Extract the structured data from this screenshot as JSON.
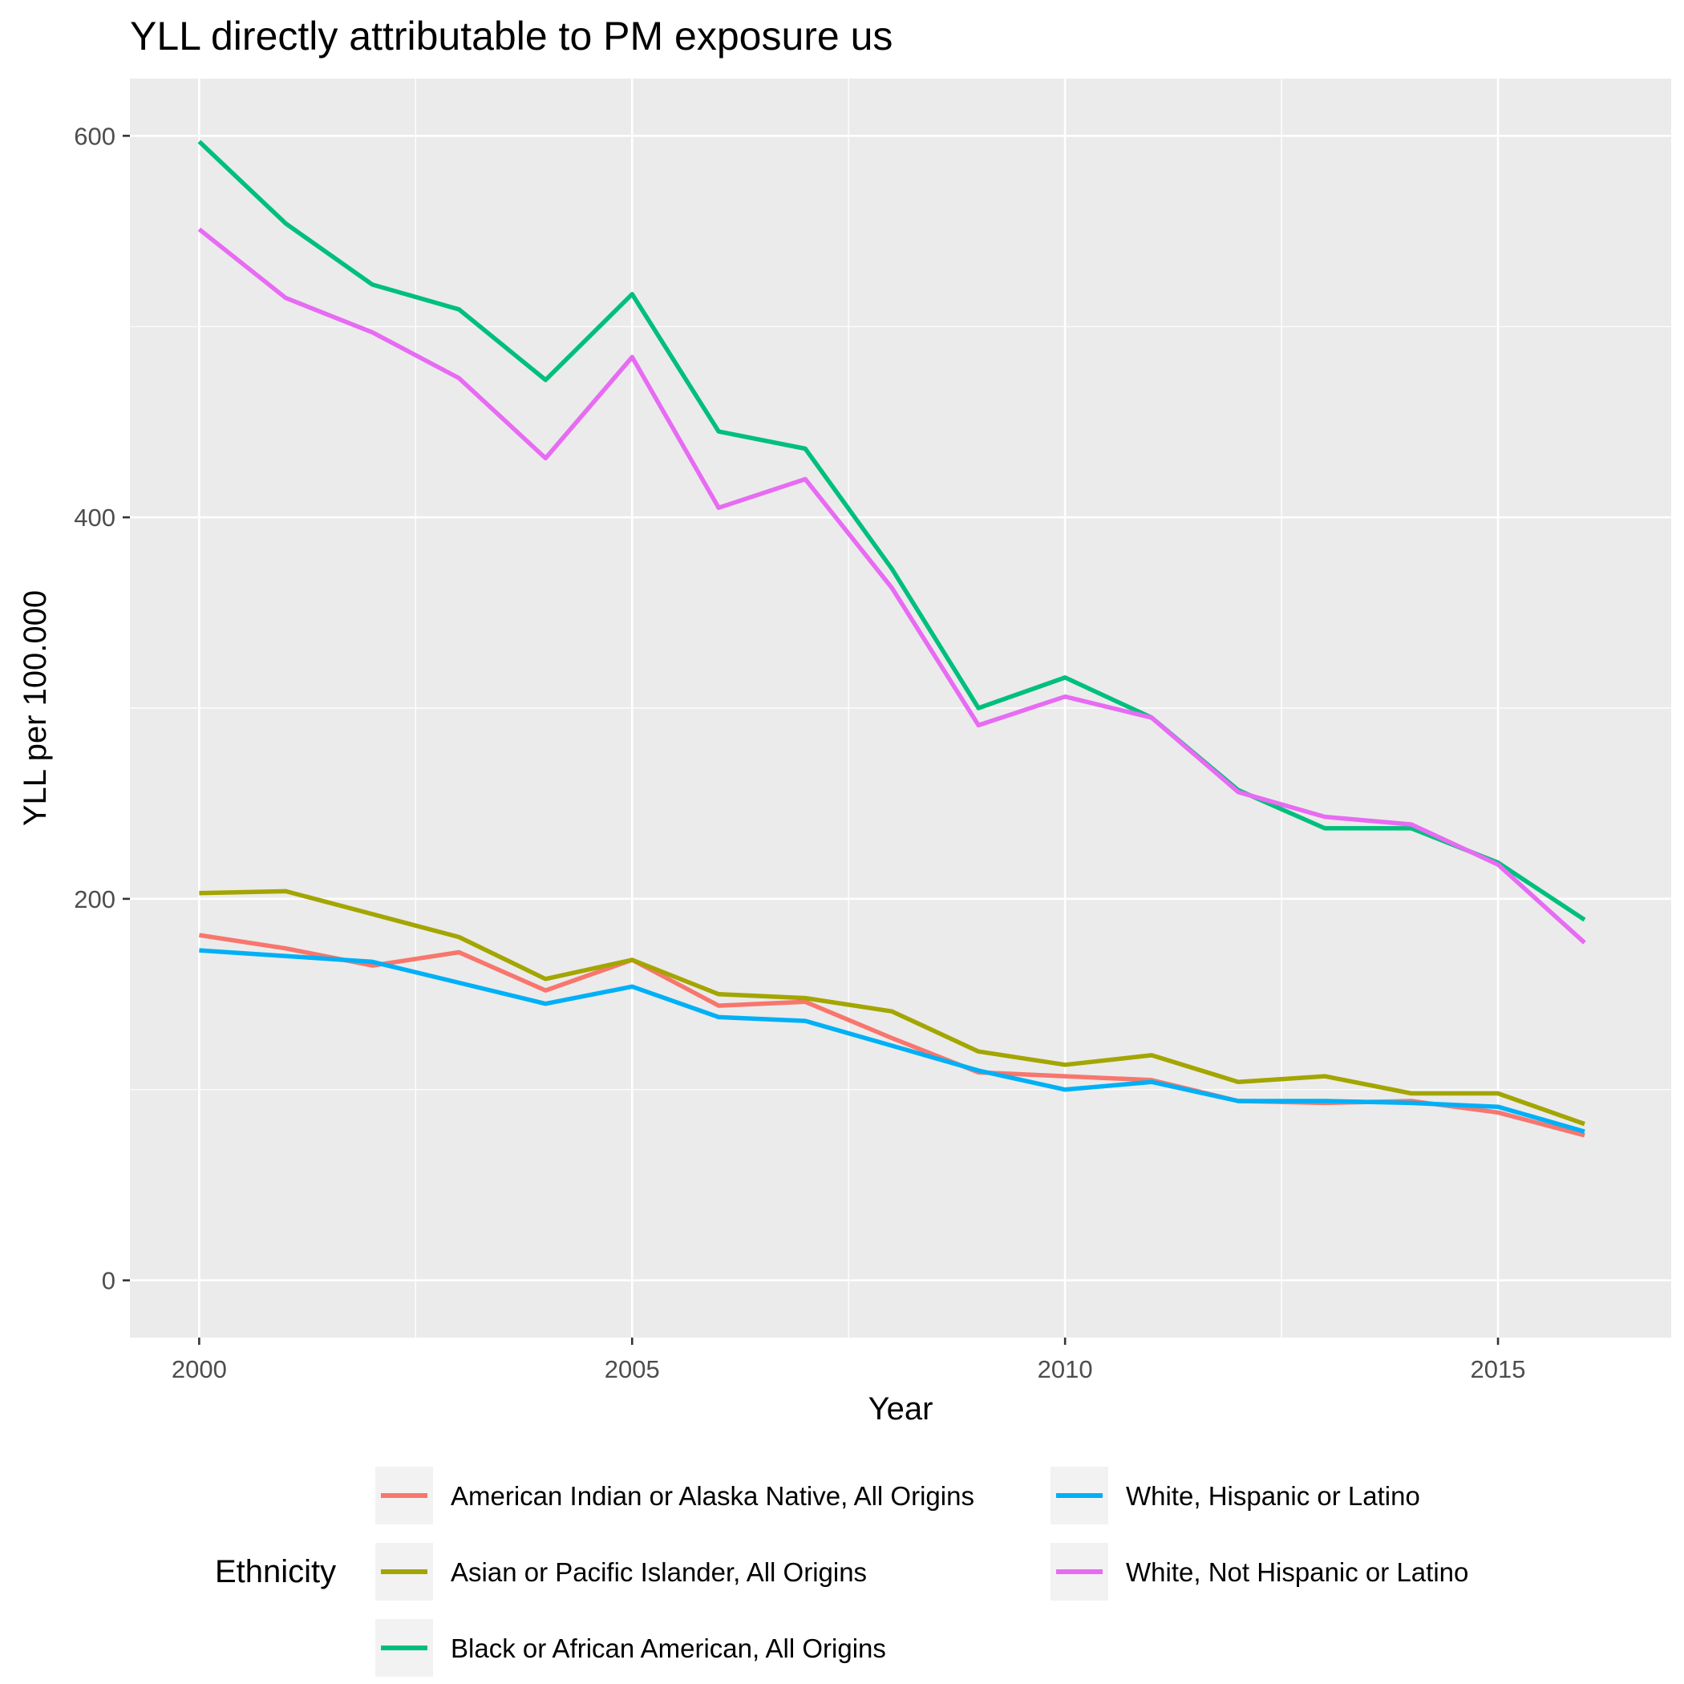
{
  "chart_data": {
    "type": "line",
    "title": "YLL directly attributable to PM exposure us",
    "xlabel": "Year",
    "ylabel": "YLL per 100.000",
    "xlim": [
      1999.2,
      2017.0
    ],
    "ylim": [
      -30,
      630
    ],
    "x_ticks": [
      2000,
      2005,
      2010,
      2015
    ],
    "x_tick_labels": [
      "2000",
      "2005",
      "2010",
      "2015"
    ],
    "x_minor": [
      2002.5,
      2007.5,
      2012.5
    ],
    "y_ticks": [
      0,
      200,
      400,
      600
    ],
    "y_tick_labels": [
      "0",
      "200",
      "400",
      "600"
    ],
    "y_minor": [
      100,
      300,
      500
    ],
    "grid": true,
    "legend": {
      "title": "Ethnicity",
      "position": "bottom"
    },
    "x": [
      2000,
      2001,
      2002,
      2003,
      2004,
      2005,
      2006,
      2007,
      2008,
      2009,
      2010,
      2011,
      2012,
      2013,
      2014,
      2015,
      2016
    ],
    "series": [
      {
        "name": "American Indian or Alaska Native, All Origins",
        "color": "#F8766D",
        "values": [
          181,
          174,
          165,
          172,
          152,
          168,
          144,
          146,
          127,
          109,
          107,
          105,
          94,
          93,
          94,
          88,
          76
        ]
      },
      {
        "name": "Asian or Pacific Islander, All Origins",
        "color": "#A3A500",
        "values": [
          203,
          204,
          192,
          180,
          158,
          168,
          150,
          148,
          141,
          120,
          113,
          118,
          104,
          107,
          98,
          98,
          82
        ]
      },
      {
        "name": "Black or African American, All Origins",
        "color": "#00BF7D",
        "values": [
          597,
          554,
          522,
          509,
          472,
          517,
          445,
          436,
          373,
          300,
          316,
          295,
          257,
          237,
          237,
          219,
          189
        ]
      },
      {
        "name": "White, Hispanic or Latino",
        "color": "#00B0F6",
        "values": [
          173,
          170,
          167,
          156,
          145,
          154,
          138,
          136,
          123,
          110,
          100,
          104,
          94,
          94,
          93,
          91,
          78
        ]
      },
      {
        "name": "White, Not Hispanic or Latino",
        "color": "#E76BF3",
        "values": [
          551,
          515,
          497,
          473,
          431,
          484,
          405,
          420,
          363,
          291,
          306,
          295,
          256,
          243,
          239,
          218,
          177
        ]
      }
    ]
  }
}
